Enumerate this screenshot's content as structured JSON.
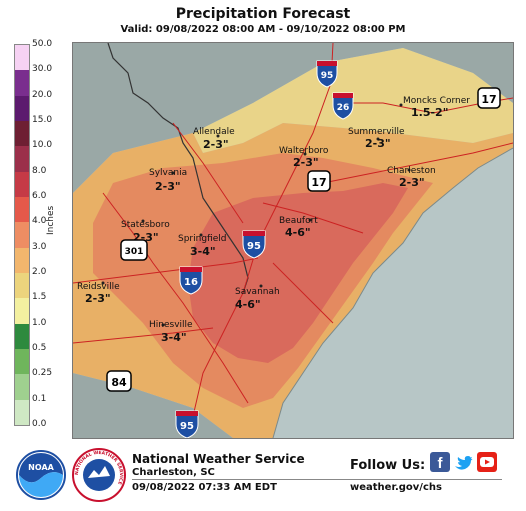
{
  "title": "Precipitation Forecast",
  "subtitle": "Valid: 09/08/2022 08:00 AM - 09/10/2022 08:00 PM",
  "legend": {
    "units": "Inches",
    "ticks": [
      "50.0",
      "30.0",
      "20.0",
      "15.0",
      "10.0",
      "8.0",
      "6.0",
      "4.0",
      "3.0",
      "2.0",
      "1.5",
      "1.0",
      "0.5",
      "0.25",
      "0.1",
      "0.0"
    ],
    "colors": [
      "#f6d2f3",
      "#7a2e8e",
      "#5c1a6e",
      "#6e1f33",
      "#9b2f4a",
      "#c53a46",
      "#e5594a",
      "#ee8d63",
      "#f2b66d",
      "#ecd47d",
      "#f3f0a0",
      "#2e8a3e",
      "#6fb55c",
      "#9fd08f",
      "#cfe8c4",
      "#f5f5f5"
    ]
  },
  "map": {
    "colors": {
      "water": "#b7c6c6",
      "land_outside": "#9aa8a6",
      "amt_1_5_2": "#e9d489",
      "amt_2_3": "#e8b066",
      "amt_3_4": "#e48a60",
      "amt_4_6": "#d96a5c",
      "roads": "#cc2222",
      "boundary": "#333333"
    },
    "places": [
      {
        "name": "Moncks Corner",
        "amount": "1.5-2\""
      },
      {
        "name": "Allendale",
        "amount": "2-3\""
      },
      {
        "name": "Summerville",
        "amount": "2-3\""
      },
      {
        "name": "Walterboro",
        "amount": "2-3\""
      },
      {
        "name": "Sylvania",
        "amount": "2-3\""
      },
      {
        "name": "Charleston",
        "amount": "2-3\""
      },
      {
        "name": "Beaufort",
        "amount": "4-6\""
      },
      {
        "name": "Statesboro",
        "amount": "2-3\""
      },
      {
        "name": "Springfield",
        "amount": "3-4\""
      },
      {
        "name": "Savannah",
        "amount": "4-6\""
      },
      {
        "name": "Reidsville",
        "amount": "2-3\""
      },
      {
        "name": "Hinesville",
        "amount": "3-4\""
      }
    ],
    "shields": {
      "i95_top": "95",
      "i26": "26",
      "us17_ne": "17",
      "us17_mid": "17",
      "i95_mid": "95",
      "us301": "301",
      "i16": "16",
      "us84": "84",
      "i95_bottom": "95"
    }
  },
  "footer": {
    "office_name": "National Weather Service",
    "office_location": "Charleston, SC",
    "issued": "09/08/2022 07:33 AM EDT",
    "follow": "Follow Us:",
    "website": "weather.gov/chs",
    "noaa_logo_text": "NOAA",
    "nws_logo_text": "NATIONAL WEATHER SERVICE"
  }
}
